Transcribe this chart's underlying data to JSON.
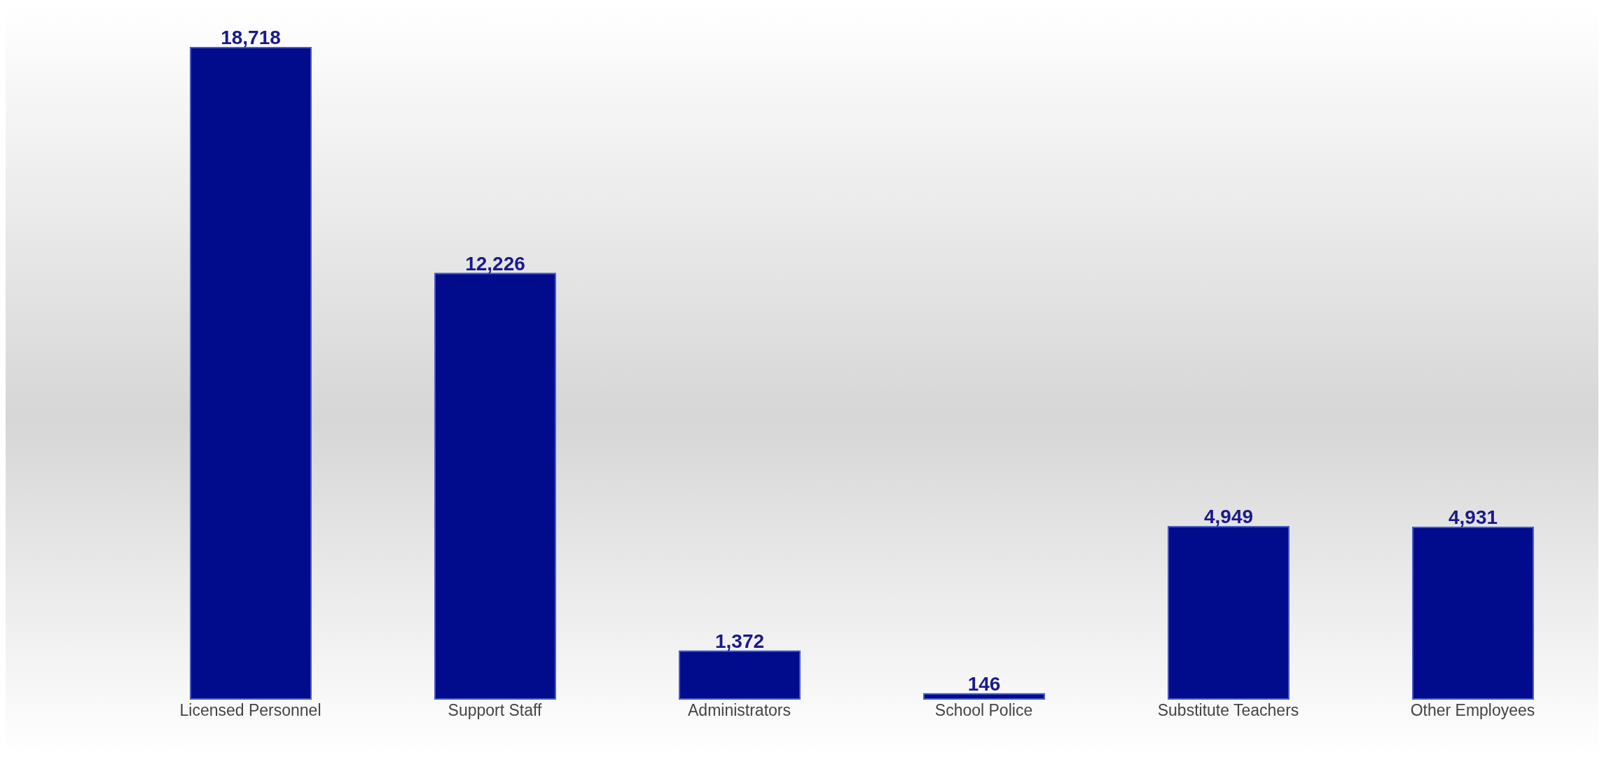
{
  "chart_data": {
    "type": "bar",
    "categories": [
      "Licensed Personnel",
      "Support Staff",
      "Administrators",
      "School Police",
      "Substitute Teachers",
      "Other Employees"
    ],
    "values": [
      18718,
      12226,
      1372,
      146,
      4949,
      4931
    ],
    "color": "#000c8c",
    "value_labels": [
      "18,718",
      "12,226",
      "1,372",
      "146",
      "4,949",
      "4,931"
    ],
    "grid": false,
    "legend": false
  }
}
